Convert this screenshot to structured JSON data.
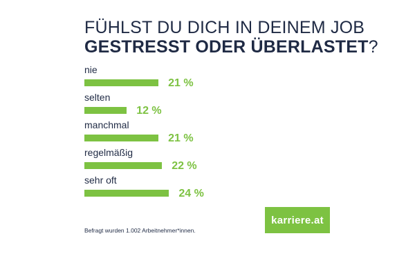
{
  "title": {
    "line1": "FÜHLST DU DICH IN DEINEM JOB",
    "line2_bold": "GESTRESST ODER ÜBERLASTET",
    "line2_end": "?"
  },
  "footnote": "Befragt wurden 1.002 Arbeitnehmer*innen.",
  "logo": "karriere.at",
  "colors": {
    "bar": "#7dc242",
    "text": "#1f2a44"
  },
  "chart_data": {
    "type": "bar",
    "orientation": "horizontal",
    "categories": [
      "nie",
      "selten",
      "manchmal",
      "regelmäßig",
      "sehr oft"
    ],
    "values": [
      21,
      12,
      21,
      22,
      24
    ],
    "value_labels": [
      "21 %",
      "12 %",
      "21 %",
      "22 %",
      "24 %"
    ],
    "unit": "%"
  }
}
